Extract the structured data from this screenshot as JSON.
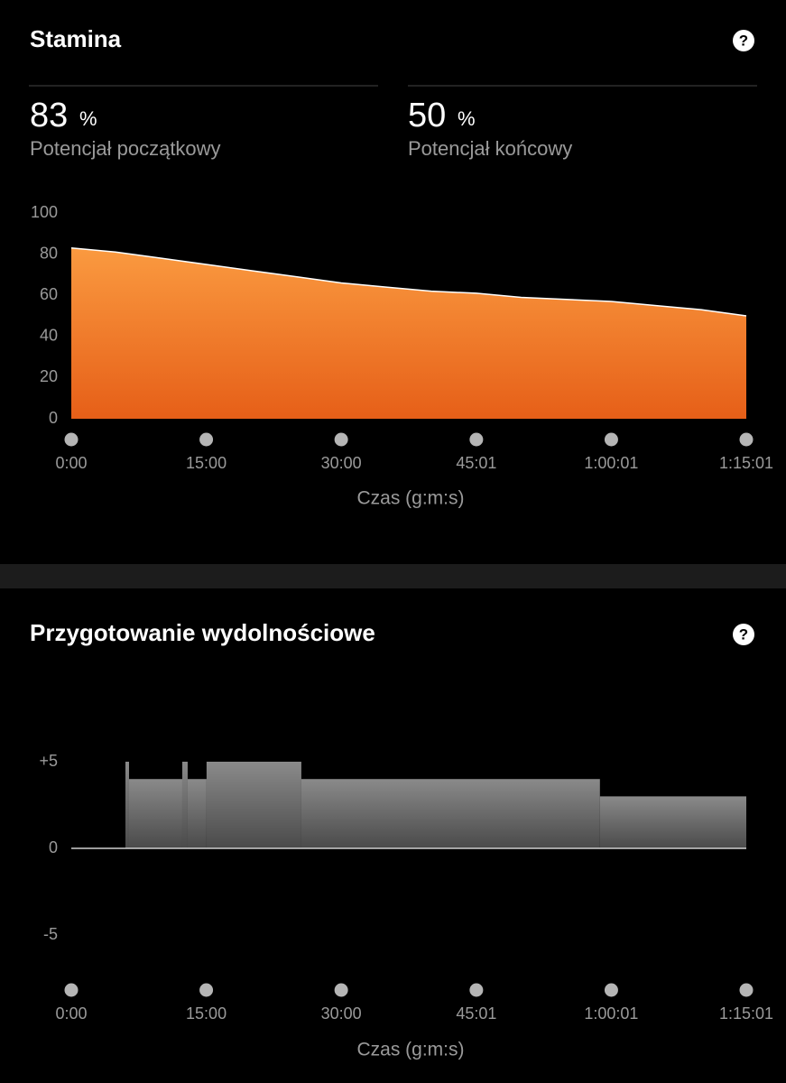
{
  "stamina_stats": {
    "start": {
      "value": 83,
      "unit": "%",
      "label": "Potencjał początkowy"
    },
    "end": {
      "value": 50,
      "unit": "%",
      "label": "Potencjał końcowy"
    }
  },
  "help": [
    "?",
    "?"
  ],
  "chart_data": [
    {
      "type": "area",
      "title": "Stamina",
      "color": "#f7903a",
      "x": [
        0,
        300,
        600,
        900,
        1200,
        1500,
        1800,
        2100,
        2400,
        2700,
        3000,
        3300,
        3600,
        3900,
        4200,
        4501
      ],
      "values": [
        83,
        81,
        78,
        75,
        72,
        69,
        66,
        64,
        62,
        61,
        59,
        58,
        57,
        55,
        53,
        50
      ],
      "xlim": [
        0,
        4501
      ],
      "xticks": [
        {
          "value": 0,
          "label": "0:00"
        },
        {
          "value": 900,
          "label": "15:00"
        },
        {
          "value": 1800,
          "label": "30:00"
        },
        {
          "value": 2701,
          "label": "45:01"
        },
        {
          "value": 3601,
          "label": "1:00:01"
        },
        {
          "value": 4501,
          "label": "1:15:01"
        }
      ],
      "ylim": [
        0,
        100
      ],
      "yticks": [
        0,
        20,
        40,
        60,
        80,
        100
      ],
      "xlabel": "Czas (g:m:s)"
    },
    {
      "type": "step",
      "title": "Przygotowanie wydolnościowe",
      "color": "#7a7a7a",
      "x": [
        0,
        361,
        385,
        740,
        776,
        902,
        1534,
        3525
      ],
      "values": [
        0,
        5,
        4,
        5,
        4,
        5,
        4,
        3
      ],
      "xlim": [
        0,
        4501
      ],
      "xticks": [
        {
          "value": 0,
          "label": "0:00"
        },
        {
          "value": 900,
          "label": "15:00"
        },
        {
          "value": 1800,
          "label": "30:00"
        },
        {
          "value": 2701,
          "label": "45:01"
        },
        {
          "value": 3601,
          "label": "1:00:01"
        },
        {
          "value": 4501,
          "label": "1:15:01"
        }
      ],
      "ylim": [
        -5,
        5
      ],
      "yticks": [
        {
          "value": 5,
          "label": "+5"
        },
        0,
        -5
      ],
      "xlabel": "Czas (g:m:s)"
    }
  ]
}
